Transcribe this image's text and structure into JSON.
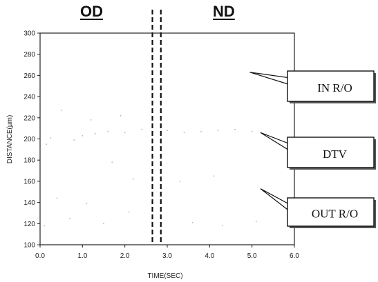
{
  "chart_data": {
    "type": "scatter",
    "headers": {
      "left": "OD",
      "right": "ND"
    },
    "xlabel": "TIME(SEC)",
    "ylabel": "DISTANCE(µm)",
    "xlim": [
      0.0,
      6.0
    ],
    "ylim": [
      100,
      300
    ],
    "xticks": [
      "0.0",
      "1.0",
      "2.0",
      "3.0",
      "4.0",
      "5.0",
      "6.0"
    ],
    "yticks": [
      "100",
      "120",
      "140",
      "160",
      "180",
      "200",
      "220",
      "240",
      "260",
      "280",
      "300"
    ],
    "divider_times": [
      2.65,
      2.85
    ],
    "callouts": [
      {
        "label": "IN R/O",
        "points_to": {
          "x": 4.95,
          "y": 263
        }
      },
      {
        "label": "DTV",
        "points_to": {
          "x": 5.2,
          "y": 206
        }
      },
      {
        "label": "OUT R/O",
        "points_to": {
          "x": 5.2,
          "y": 153
        }
      }
    ],
    "series": [
      {
        "points": [
          {
            "x": 0.15,
            "y": 195
          },
          {
            "x": 0.25,
            "y": 201
          },
          {
            "x": 0.8,
            "y": 199
          },
          {
            "x": 1.0,
            "y": 203
          },
          {
            "x": 1.3,
            "y": 205
          },
          {
            "x": 1.6,
            "y": 207
          },
          {
            "x": 2.0,
            "y": 206
          },
          {
            "x": 2.4,
            "y": 209
          },
          {
            "x": 3.0,
            "y": 208
          },
          {
            "x": 3.4,
            "y": 206
          },
          {
            "x": 3.8,
            "y": 207
          },
          {
            "x": 4.2,
            "y": 208
          },
          {
            "x": 4.6,
            "y": 209
          },
          {
            "x": 5.0,
            "y": 207
          },
          {
            "x": 0.5,
            "y": 227
          },
          {
            "x": 1.2,
            "y": 218
          },
          {
            "x": 1.9,
            "y": 222
          },
          {
            "x": 0.1,
            "y": 118
          },
          {
            "x": 0.7,
            "y": 125
          },
          {
            "x": 1.5,
            "y": 120
          },
          {
            "x": 2.1,
            "y": 131
          },
          {
            "x": 0.4,
            "y": 144
          },
          {
            "x": 1.1,
            "y": 139
          },
          {
            "x": 3.6,
            "y": 121
          },
          {
            "x": 4.3,
            "y": 118
          },
          {
            "x": 5.1,
            "y": 122
          },
          {
            "x": 3.3,
            "y": 160
          },
          {
            "x": 4.1,
            "y": 165
          },
          {
            "x": 2.2,
            "y": 162
          },
          {
            "x": 1.7,
            "y": 178
          }
        ]
      }
    ]
  }
}
